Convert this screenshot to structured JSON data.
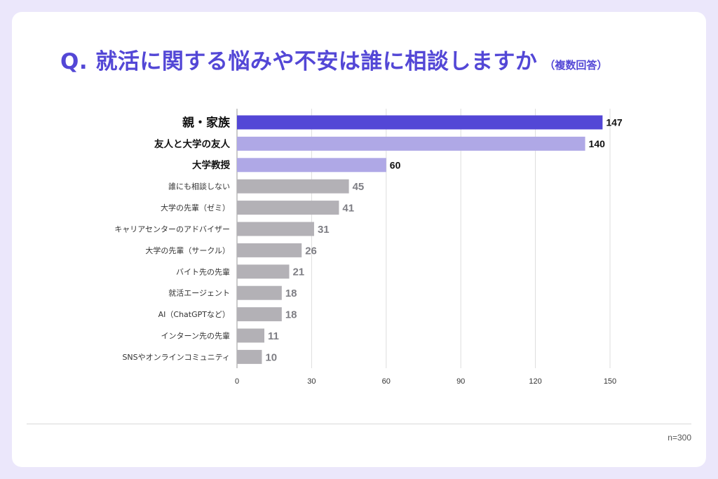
{
  "title": {
    "main": "Q. 就活に関する悩みや不安は誰に相談しますか",
    "sub": "（複数回答）"
  },
  "note": "n=300",
  "colors": {
    "background": "#ebe7fb",
    "card": "#ffffff",
    "title": "#5347d6",
    "highlight": "#5347d6",
    "secondary": "#afa8e6",
    "muted": "#b3b1b6",
    "muted_text": "#7e7e84",
    "strong_text": "#111111",
    "grid": "#dddddd"
  },
  "chart_data": {
    "type": "bar",
    "orientation": "horizontal",
    "categories": [
      "親・家族",
      "友人と大学の友人",
      "大学教授",
      "誰にも相談しない",
      "大学の先輩（ゼミ）",
      "キャリアセンターのアドバイザー",
      "大学の先輩（サークル）",
      "バイト先の先輩",
      "就活エージェント",
      "AI（ChatGPTなど）",
      "インターン先の先輩",
      "SNSやオンラインコミュニティ"
    ],
    "values": [
      147,
      140,
      60,
      45,
      41,
      31,
      26,
      21,
      18,
      18,
      11,
      10
    ],
    "emphasis": [
      "primary",
      "secondary",
      "secondary",
      "muted",
      "muted",
      "muted",
      "muted",
      "muted",
      "muted",
      "muted",
      "muted",
      "muted"
    ],
    "xlim": [
      0,
      150
    ],
    "xticks": [
      0,
      30,
      60,
      90,
      120,
      150
    ],
    "grid": true,
    "xlabel": "",
    "ylabel": ""
  }
}
